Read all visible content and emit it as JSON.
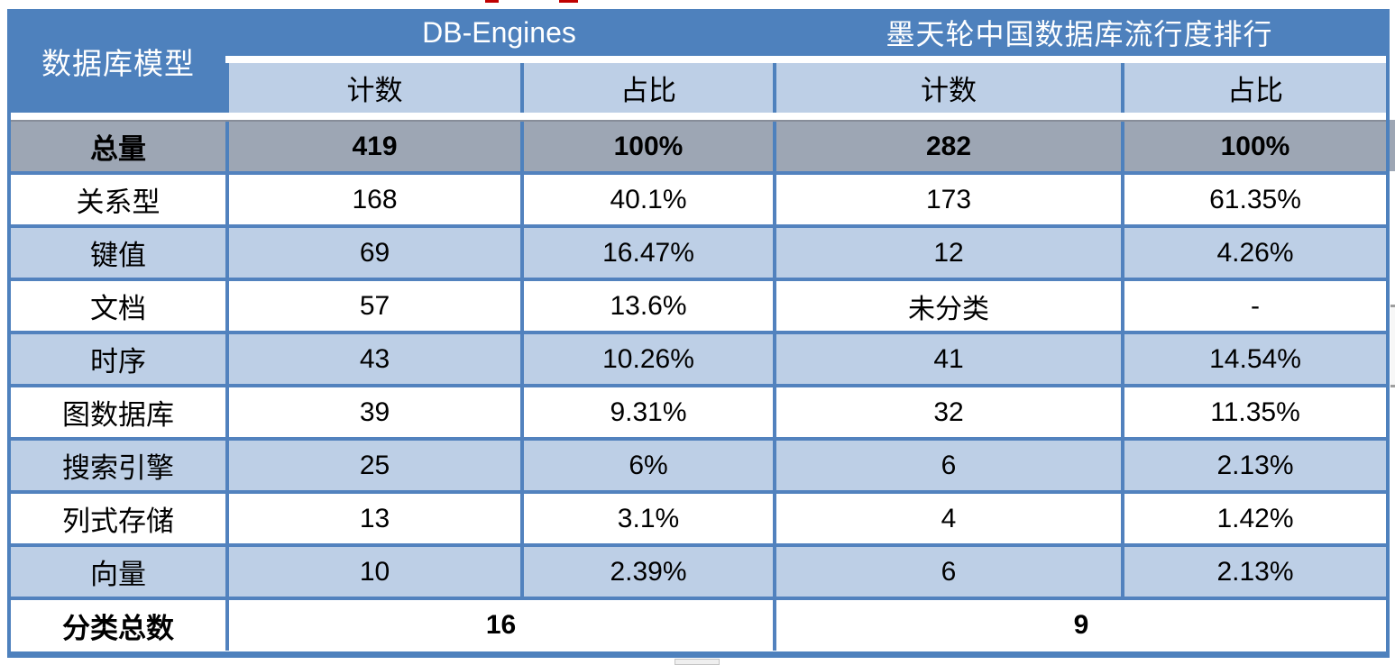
{
  "table": {
    "corner_label": "数据库模型",
    "col_groups": [
      {
        "label": "DB-Engines"
      },
      {
        "label": "墨天轮中国数据库流行度排行"
      }
    ],
    "sub_headers": [
      "计数",
      "占比",
      "计数",
      "占比"
    ],
    "total_row": {
      "label": "总量",
      "values": [
        "419",
        "100%",
        "282",
        "100%"
      ]
    },
    "rows": [
      {
        "label": "关系型",
        "values": [
          "168",
          "40.1%",
          "173",
          "61.35%"
        ]
      },
      {
        "label": "键值",
        "values": [
          "69",
          "16.47%",
          "12",
          "4.26%"
        ]
      },
      {
        "label": "文档",
        "values": [
          "57",
          "13.6%",
          "未分类",
          "-"
        ]
      },
      {
        "label": "时序",
        "values": [
          "43",
          "10.26%",
          "41",
          "14.54%"
        ]
      },
      {
        "label": "图数据库",
        "values": [
          "39",
          "9.31%",
          "32",
          "11.35%"
        ]
      },
      {
        "label": "搜索引擎",
        "values": [
          "25",
          "6%",
          "6",
          "2.13%"
        ]
      },
      {
        "label": "列式存储",
        "values": [
          "13",
          "3.1%",
          "4",
          "1.42%"
        ]
      },
      {
        "label": "向量",
        "values": [
          "10",
          "2.39%",
          "6",
          "2.13%"
        ]
      }
    ],
    "footer_row": {
      "label": "分类总数",
      "values": [
        "16",
        "9"
      ]
    },
    "colors": {
      "header_blue": "#4e81bd",
      "sub_header_blue": "#bdcfe6",
      "alt_row_blue": "#bdcfe6",
      "total_row_gray": "#9da6b4",
      "border_blue": "#5282be",
      "text": "#000000",
      "header_text": "#ffffff"
    }
  },
  "chart_data": {
    "type": "table",
    "title": "数据库模型流行度对比：DB-Engines vs 墨天轮中国数据库流行度排行",
    "column_groups": [
      "DB-Engines",
      "墨天轮中国数据库流行度排行"
    ],
    "columns": [
      "数据库模型",
      "DB-Engines 计数",
      "DB-Engines 占比",
      "墨天轮 计数",
      "墨天轮 占比"
    ],
    "rows": [
      [
        "总量",
        "419",
        "100%",
        "282",
        "100%"
      ],
      [
        "关系型",
        "168",
        "40.1%",
        "173",
        "61.35%"
      ],
      [
        "键值",
        "69",
        "16.47%",
        "12",
        "4.26%"
      ],
      [
        "文档",
        "57",
        "13.6%",
        "未分类",
        "-"
      ],
      [
        "时序",
        "43",
        "10.26%",
        "41",
        "14.54%"
      ],
      [
        "图数据库",
        "39",
        "9.31%",
        "32",
        "11.35%"
      ],
      [
        "搜索引擎",
        "25",
        "6%",
        "6",
        "2.13%"
      ],
      [
        "列式存储",
        "13",
        "3.1%",
        "4",
        "1.42%"
      ],
      [
        "向量",
        "10",
        "2.39%",
        "6",
        "2.13%"
      ],
      [
        "分类总数",
        "16",
        "",
        "9",
        ""
      ]
    ]
  }
}
